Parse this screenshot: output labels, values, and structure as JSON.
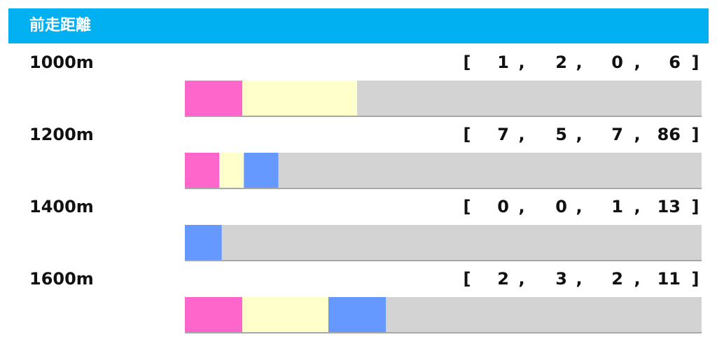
{
  "header": {
    "title": "前走距離"
  },
  "record_format": {
    "open": "[",
    "close": "]",
    "separator": ","
  },
  "colors": [
    "#ff66cc",
    "#ffffcc",
    "#6699ff",
    "#d3d3d3"
  ],
  "rows": [
    {
      "label": "1000m",
      "values": [
        1,
        2,
        0,
        6
      ]
    },
    {
      "label": "1200m",
      "values": [
        7,
        5,
        7,
        86
      ]
    },
    {
      "label": "1400m",
      "values": [
        0,
        0,
        1,
        13
      ]
    },
    {
      "label": "1600m",
      "values": [
        2,
        3,
        2,
        11
      ]
    }
  ]
}
